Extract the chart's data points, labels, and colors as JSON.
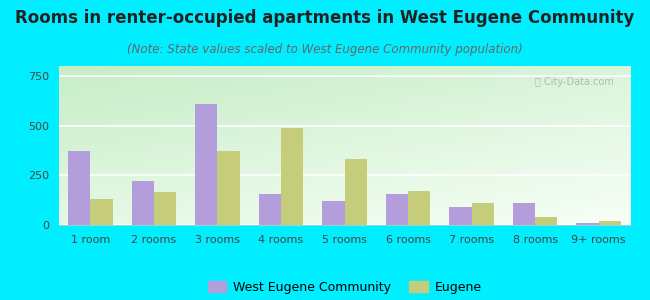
{
  "title": "Rooms in renter-occupied apartments in West Eugene Community",
  "subtitle": "(Note: State values scaled to West Eugene Community population)",
  "categories": [
    "1 room",
    "2 rooms",
    "3 rooms",
    "4 rooms",
    "5 rooms",
    "6 rooms",
    "7 rooms",
    "8 rooms",
    "9+ rooms"
  ],
  "west_eugene": [
    370,
    220,
    610,
    155,
    120,
    155,
    90,
    110,
    10
  ],
  "eugene": [
    130,
    165,
    370,
    490,
    330,
    170,
    110,
    40,
    18
  ],
  "west_eugene_color": "#b39ddb",
  "eugene_color": "#c5cc7a",
  "title_fontsize": 12,
  "subtitle_fontsize": 8.5,
  "background_outer": "#00eeff",
  "plot_bg_top_left": "#c8e8c8",
  "plot_bg_bottom_right": "#f8fff8",
  "ylim": [
    0,
    800
  ],
  "yticks": [
    0,
    250,
    500,
    750
  ],
  "bar_width": 0.35,
  "legend_wec": "West Eugene Community",
  "legend_eugene": "Eugene",
  "title_color": "#222222",
  "subtitle_color": "#666666",
  "watermark_color": "#aaaaaa"
}
